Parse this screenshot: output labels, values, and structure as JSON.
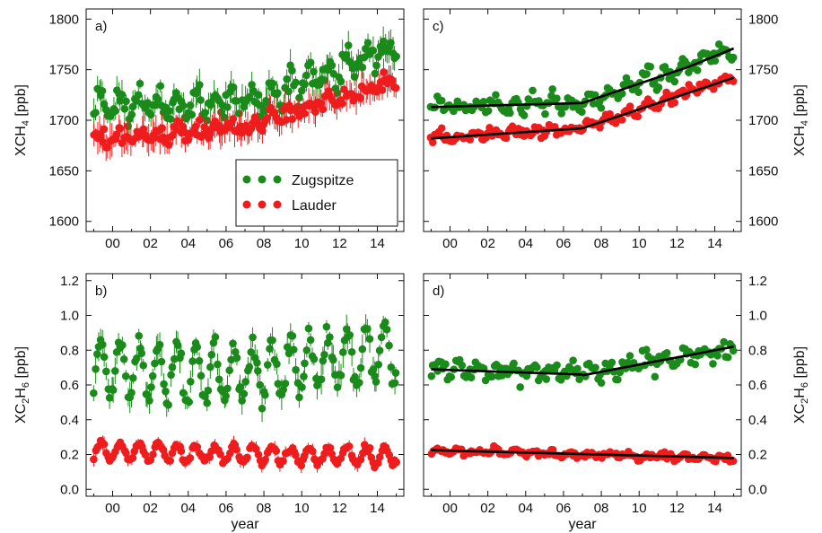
{
  "colors": {
    "zugspitze": "#1a8a1a",
    "lauder": "#ee1c1c",
    "trend": "#000000",
    "axis": "#111111"
  },
  "chart_data": {
    "type": "scatter",
    "layout": "2x2 panels",
    "x_label": "year",
    "x_tick_labels": [
      "00",
      "02",
      "04",
      "06",
      "08",
      "10",
      "12",
      "14"
    ],
    "x_range": [
      1998.6,
      2015.4
    ],
    "legend": {
      "placement": "bottom-right of panel a",
      "entries": [
        "Zugspitze",
        "Lauder"
      ]
    },
    "panels": [
      {
        "tag": "a)",
        "ylabel_pre": "XCH",
        "ylabel_sub": "4",
        "ylabel_post": " [ppb]",
        "ylabel_side": "left",
        "ylim": [
          1590,
          1810
        ],
        "yticks": [
          "1600",
          "1650",
          "1700",
          "1750",
          "1800"
        ],
        "error_bars": true,
        "series": [
          {
            "name": "Zugspitze",
            "y_start": 1715,
            "y_break": 1717,
            "y_end": 1775,
            "spread": 14,
            "seasonal": 10,
            "err": 11
          },
          {
            "name": "Lauder",
            "y_start": 1683,
            "y_break": 1693,
            "y_end": 1738,
            "spread": 8,
            "seasonal": 4,
            "err": 12
          }
        ]
      },
      {
        "tag": "c)",
        "ylabel_pre": "XCH",
        "ylabel_sub": "4",
        "ylabel_post": " [ppb]",
        "ylabel_side": "right",
        "ylim": [
          1590,
          1810
        ],
        "yticks": [
          "1600",
          "1650",
          "1700",
          "1750",
          "1800"
        ],
        "error_bars": false,
        "series": [
          {
            "name": "Zugspitze",
            "y_start": 1713,
            "y_break": 1717,
            "y_end": 1771,
            "spread": 8,
            "seasonal": 6,
            "err": 0
          },
          {
            "name": "Lauder",
            "y_start": 1682,
            "y_break": 1692,
            "y_end": 1742,
            "spread": 6,
            "seasonal": 3,
            "err": 0
          }
        ],
        "trend_lines": [
          {
            "name": "Zugspitze",
            "segments": [
              [
                [
                  1999.0,
                  1713
                ],
                [
                  2007.0,
                  1717
                ]
              ],
              [
                [
                  2007.0,
                  1717
                ],
                [
                  2012.5,
                  1752
                ],
                [
                  2015.0,
                  1771
                ]
              ]
            ]
          },
          {
            "name": "Lauder",
            "segments": [
              [
                [
                  1999.0,
                  1682
                ],
                [
                  2007.0,
                  1692
                ]
              ],
              [
                [
                  2007.0,
                  1692
                ],
                [
                  2015.0,
                  1742
                ]
              ]
            ]
          }
        ]
      },
      {
        "tag": "b)",
        "ylabel_pre": "XC",
        "ylabel_sub": "2",
        "ylabel_post": "H",
        "ylabel_sub2": "6",
        "ylabel_post2": " [ppb]",
        "ylabel_side": "left",
        "ylim": [
          -0.04,
          1.24
        ],
        "yticks": [
          "0.0",
          "0.2",
          "0.4",
          "0.6",
          "0.8",
          "1.0",
          "1.2"
        ],
        "error_bars": true,
        "series": [
          {
            "name": "Zugspitze",
            "y_start": 0.7,
            "y_break": 0.66,
            "y_end": 0.8,
            "spread": 0.06,
            "seasonal": 0.16,
            "err": 0.06
          },
          {
            "name": "Lauder",
            "y_start": 0.22,
            "y_break": 0.2,
            "y_end": 0.19,
            "spread": 0.02,
            "seasonal": 0.05,
            "err": 0.03
          }
        ]
      },
      {
        "tag": "d)",
        "ylabel_pre": "XC",
        "ylabel_sub": "2",
        "ylabel_post": "H",
        "ylabel_sub2": "6",
        "ylabel_post2": " [ppb]",
        "ylabel_side": "right",
        "ylim": [
          -0.04,
          1.24
        ],
        "yticks": [
          "0.0",
          "0.2",
          "0.4",
          "0.6",
          "0.8",
          "1.0",
          "1.2"
        ],
        "error_bars": false,
        "series": [
          {
            "name": "Zugspitze",
            "y_start": 0.69,
            "y_break": 0.66,
            "y_end": 0.82,
            "spread": 0.05,
            "seasonal": 0.03,
            "err": 0
          },
          {
            "name": "Lauder",
            "y_start": 0.22,
            "y_break": 0.2,
            "y_end": 0.18,
            "spread": 0.02,
            "seasonal": 0.01,
            "err": 0
          }
        ],
        "trend_lines": [
          {
            "name": "Zugspitze",
            "segments": [
              [
                [
                  1999.0,
                  0.69
                ],
                [
                  2007.0,
                  0.66
                ]
              ],
              [
                [
                  2007.0,
                  0.655
                ],
                [
                  2015.0,
                  0.82
                ]
              ]
            ]
          },
          {
            "name": "Lauder",
            "segments": [
              [
                [
                  1999.0,
                  0.225
                ],
                [
                  2015.0,
                  0.18
                ]
              ]
            ]
          }
        ]
      }
    ]
  }
}
